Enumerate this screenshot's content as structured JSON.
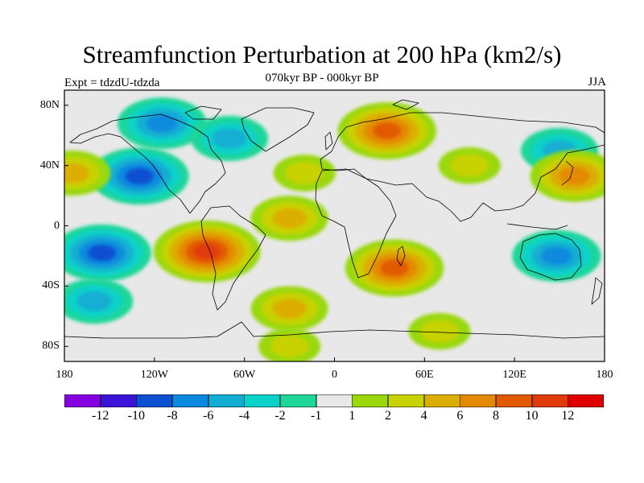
{
  "title": "Streamfunction Perturbation at 200 hPa (km2/s)",
  "subtitle": "070kyr BP - 000kyr BP",
  "experiment": "Expt = tdzdU-tdzda",
  "season": "JJA",
  "lat_labels": [
    "80N",
    "40N",
    "0",
    "40S",
    "80S"
  ],
  "lat_values": [
    80,
    40,
    0,
    -40,
    -80
  ],
  "lon_labels": [
    "180",
    "120W",
    "60W",
    "0",
    "60E",
    "120E",
    "180"
  ],
  "lon_values": [
    -180,
    -120,
    -60,
    0,
    60,
    120,
    180
  ],
  "colorbar": {
    "labels": [
      "-12",
      "-10",
      "-8",
      "-6",
      "-4",
      "-2",
      "-1",
      "1",
      "2",
      "4",
      "6",
      "8",
      "10",
      "12"
    ],
    "colors": [
      "#8400e0",
      "#3c14d8",
      "#0a50d0",
      "#0a8ade",
      "#12aed2",
      "#0ad2c8",
      "#1ed69a",
      "#e8e8e8",
      "#9ad80a",
      "#c8d200",
      "#dcae00",
      "#e48a00",
      "#e25a00",
      "#e03a0a",
      "#e00000"
    ]
  },
  "chart_data": {
    "type": "map",
    "projection": "cylindrical equidistant",
    "lon_range": [
      -180,
      180
    ],
    "lat_range": [
      -90,
      90
    ],
    "features": [
      {
        "lon": -130,
        "lat": 33,
        "value": -8
      },
      {
        "lon": -155,
        "lat": -18,
        "value": -8
      },
      {
        "lon": -115,
        "lat": 68,
        "value": -6
      },
      {
        "lon": -70,
        "lat": 58,
        "value": -4
      },
      {
        "lon": 150,
        "lat": 50,
        "value": -4
      },
      {
        "lon": 148,
        "lat": -20,
        "value": -6
      },
      {
        "lon": -160,
        "lat": -50,
        "value": -4
      },
      {
        "lon": -85,
        "lat": -17,
        "value": 10
      },
      {
        "lon": 35,
        "lat": 63,
        "value": 8
      },
      {
        "lon": 40,
        "lat": -28,
        "value": 8
      },
      {
        "lon": 160,
        "lat": 33,
        "value": 6
      },
      {
        "lon": -175,
        "lat": 35,
        "value": 4
      },
      {
        "lon": -30,
        "lat": 5,
        "value": 4
      },
      {
        "lon": -30,
        "lat": -55,
        "value": 4
      },
      {
        "lon": -20,
        "lat": 35,
        "value": 2
      },
      {
        "lon": 90,
        "lat": 40,
        "value": 2
      },
      {
        "lon": 20,
        "lat": 20,
        "value": -0.5
      },
      {
        "lon": 70,
        "lat": -70,
        "value": 2
      },
      {
        "lon": -30,
        "lat": -80,
        "value": 2
      }
    ]
  }
}
